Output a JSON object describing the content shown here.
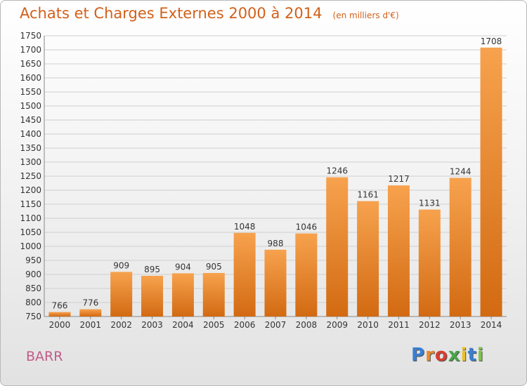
{
  "page": {
    "title": "Achats et Charges Externes 2000 à 2014",
    "unit": "(en milliers d'€)",
    "commune": "BARR",
    "logo_letters": [
      "P",
      "r",
      "o",
      "x",
      "i",
      "t",
      "i"
    ],
    "logo_colors": [
      "#3a7fd0",
      "#e8892b",
      "#d63f2f",
      "#4aa547",
      "#e8c22b",
      "#3a7fd0",
      "#7cc34a"
    ]
  },
  "chart_data": {
    "type": "bar",
    "categories": [
      "2000",
      "2001",
      "2002",
      "2003",
      "2004",
      "2005",
      "2006",
      "2007",
      "2008",
      "2009",
      "2010",
      "2011",
      "2012",
      "2013",
      "2014"
    ],
    "values": [
      766,
      776,
      909,
      895,
      904,
      905,
      1048,
      988,
      1046,
      1246,
      1161,
      1217,
      1131,
      1244,
      1708
    ],
    "title": "Achats et Charges Externes 2000 à 2014",
    "xlabel": "",
    "ylabel": "",
    "ylim": [
      750,
      1750
    ],
    "ytick_step": 50,
    "grid": true,
    "bar_color": "#e8892b"
  }
}
